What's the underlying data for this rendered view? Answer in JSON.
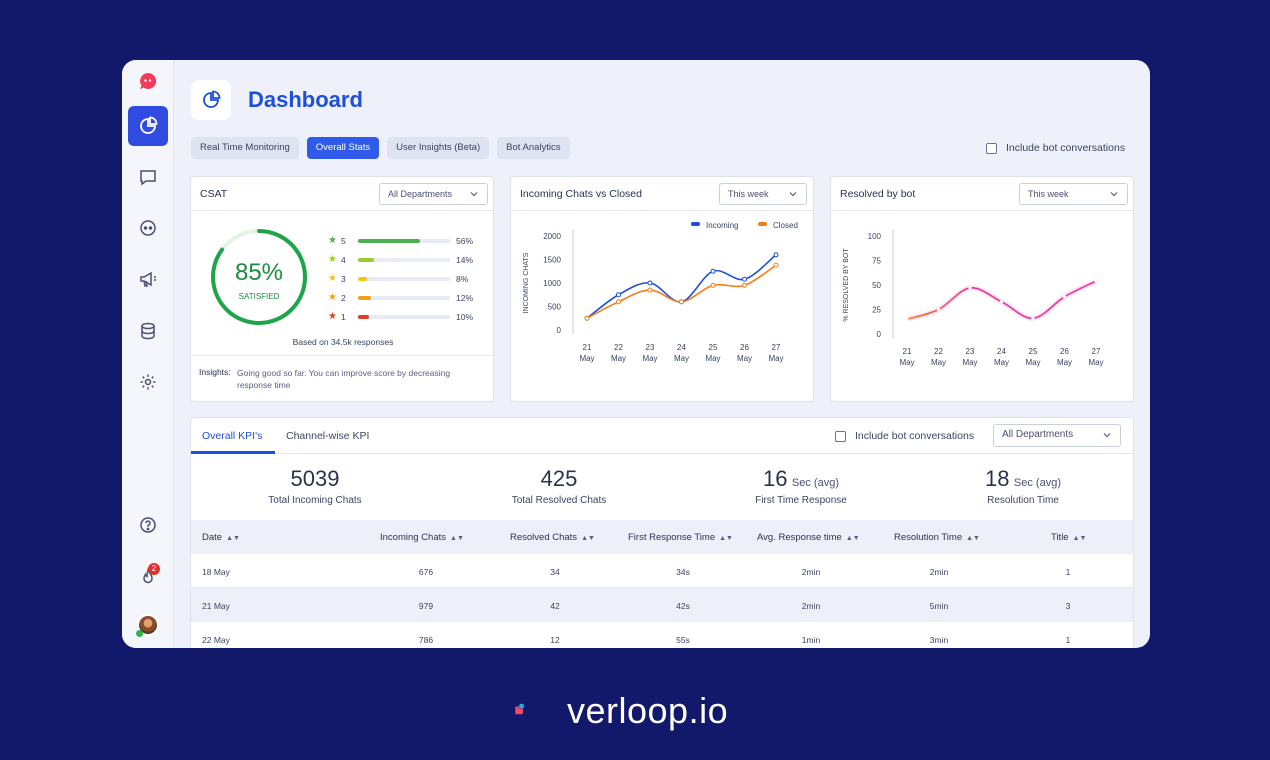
{
  "header": {
    "title": "Dashboard"
  },
  "tabs": [
    {
      "label": "Real Time Monitoring",
      "active": false
    },
    {
      "label": "Overall Stats",
      "active": true
    },
    {
      "label": "User Insights (Beta)",
      "active": false
    },
    {
      "label": "Bot Analytics",
      "active": false
    }
  ],
  "top_checkbox_label": "Include bot conversations",
  "sidebar": {
    "notification_count": "2"
  },
  "csat": {
    "title": "CSAT",
    "department_select": "All Departments",
    "score": "85%",
    "score_fraction": 0.85,
    "score_label": "SATISFIED",
    "based_on": "Based on 34.5k responses",
    "ratings": [
      {
        "stars": "5",
        "percent": "56%",
        "value": 56,
        "color": "#4caf50"
      },
      {
        "stars": "4",
        "percent": "14%",
        "value": 14,
        "color": "#9ccc2a"
      },
      {
        "stars": "3",
        "percent": "8%",
        "value": 8,
        "color": "#f5c518"
      },
      {
        "stars": "2",
        "percent": "12%",
        "value": 12,
        "color": "#f59e1a"
      },
      {
        "stars": "1",
        "percent": "10%",
        "value": 10,
        "color": "#e0401f"
      }
    ],
    "insights_label": "Insights:",
    "insights_text": "Going good so far. You can improve score by decreasing response time"
  },
  "chart_data": [
    {
      "type": "line",
      "title": "Incoming Chats vs Closed",
      "period_select": "This week",
      "ylabel": "INCOMING CHATS",
      "xlabel": "",
      "x": [
        [
          "21",
          "May"
        ],
        [
          "22",
          "May"
        ],
        [
          "23",
          "May"
        ],
        [
          "24",
          "May"
        ],
        [
          "25",
          "May"
        ],
        [
          "26",
          "May"
        ],
        [
          "27",
          "May"
        ]
      ],
      "ylim": [
        0,
        2000
      ],
      "yticks": [
        "2000",
        "1500",
        "1000",
        "500",
        "0"
      ],
      "legend_position": "top-right",
      "series": [
        {
          "name": "Incoming",
          "color": "#1e4fd8",
          "values": [
            250,
            750,
            1000,
            600,
            1250,
            1080,
            1600
          ]
        },
        {
          "name": "Closed",
          "color": "#f57c1a",
          "values": [
            250,
            600,
            850,
            600,
            950,
            950,
            1380
          ]
        }
      ]
    },
    {
      "type": "line",
      "title": "Resolved by bot",
      "period_select": "This week",
      "ylabel": "% RESOLVED BY BOT",
      "xlabel": "",
      "x": [
        [
          "21",
          "May"
        ],
        [
          "22",
          "May"
        ],
        [
          "23",
          "May"
        ],
        [
          "24",
          "May"
        ],
        [
          "25",
          "May"
        ],
        [
          "26",
          "May"
        ],
        [
          "27",
          "May"
        ]
      ],
      "ylim": [
        0,
        100
      ],
      "yticks": [
        "100",
        "75",
        "50",
        "25",
        "0"
      ],
      "series": [
        {
          "values": [
            15,
            25,
            47,
            33,
            16,
            38,
            54
          ],
          "colors": [
            "#f57c1a",
            "#e8329c"
          ]
        }
      ]
    }
  ],
  "kpi": {
    "tabs": [
      "Overall KPI's",
      "Channel-wise KPI"
    ],
    "checkbox_label": "Include bot conversations",
    "department_select": "All Departments",
    "metrics": [
      {
        "value": "5039",
        "unit": "",
        "label": "Total Incoming Chats"
      },
      {
        "value": "425",
        "unit": "",
        "label": "Total Resolved Chats"
      },
      {
        "value": "16",
        "unit": "Sec (avg)",
        "label": "First Time Response"
      },
      {
        "value": "18",
        "unit": "Sec (avg)",
        "label": "Resolution Time"
      }
    ],
    "columns": [
      "Date",
      "Incoming Chats",
      "Resolved Chats",
      "First Response Time",
      "Avg. Response time",
      "Resolution Time",
      "Title"
    ],
    "rows": [
      [
        "18 May",
        "676",
        "34",
        "34s",
        "2min",
        "2min",
        "1"
      ],
      [
        "21 May",
        "979",
        "42",
        "42s",
        "2min",
        "5min",
        "3"
      ],
      [
        "22 May",
        "786",
        "12",
        "55s",
        "1min",
        "3min",
        "1"
      ]
    ]
  },
  "brand": {
    "name": "verloop.io",
    "colors": {
      "square": "#f5475e",
      "bubble": "#2bb5f0"
    }
  }
}
